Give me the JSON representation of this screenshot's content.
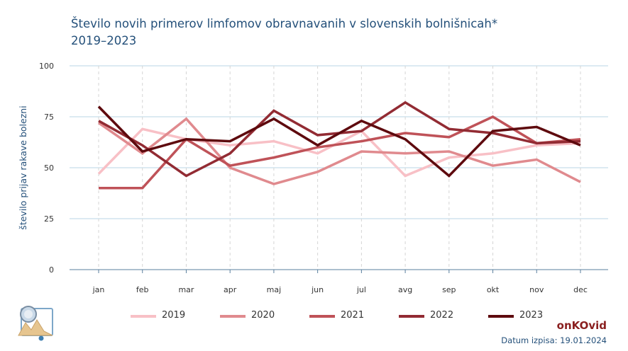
{
  "header": {
    "title_line1": "Število novih primerov limfomov obravnavanih v slovenskih bolnišnicah*",
    "title_line2": "2019–2023"
  },
  "footer": {
    "brand": "onKOvid",
    "date": "Datum izpisa: 19.01.2024"
  },
  "logo_icon": "map-chart-logo-icon",
  "chart_data": {
    "type": "line",
    "categories": [
      "jan",
      "feb",
      "mar",
      "apr",
      "maj",
      "jun",
      "jul",
      "avg",
      "sep",
      "okt",
      "nov",
      "dec"
    ],
    "ylabel": "število prijav rakave bolezni",
    "xlabel": "",
    "ylim": [
      0,
      100
    ],
    "yticks": [
      0,
      25,
      50,
      75,
      100
    ],
    "grid": true,
    "legend_position": "bottom",
    "series": [
      {
        "name": "2019",
        "color": "#f8c0c6",
        "values": [
          47,
          69,
          64,
          61,
          63,
          57,
          68,
          46,
          55,
          57,
          61,
          62
        ]
      },
      {
        "name": "2020",
        "color": "#e08a8e",
        "values": [
          72,
          57,
          74,
          50,
          42,
          48,
          58,
          57,
          58,
          51,
          54,
          43
        ]
      },
      {
        "name": "2021",
        "color": "#bf5258",
        "values": [
          40,
          40,
          64,
          51,
          55,
          60,
          63,
          67,
          65,
          75,
          62,
          64
        ]
      },
      {
        "name": "2022",
        "color": "#922b33",
        "values": [
          73,
          61,
          46,
          57,
          78,
          66,
          68,
          82,
          69,
          67,
          62,
          63
        ]
      },
      {
        "name": "2023",
        "color": "#5e0a0e",
        "values": [
          80,
          58,
          64,
          63,
          74,
          61,
          73,
          64,
          46,
          68,
          70,
          61
        ]
      }
    ]
  }
}
